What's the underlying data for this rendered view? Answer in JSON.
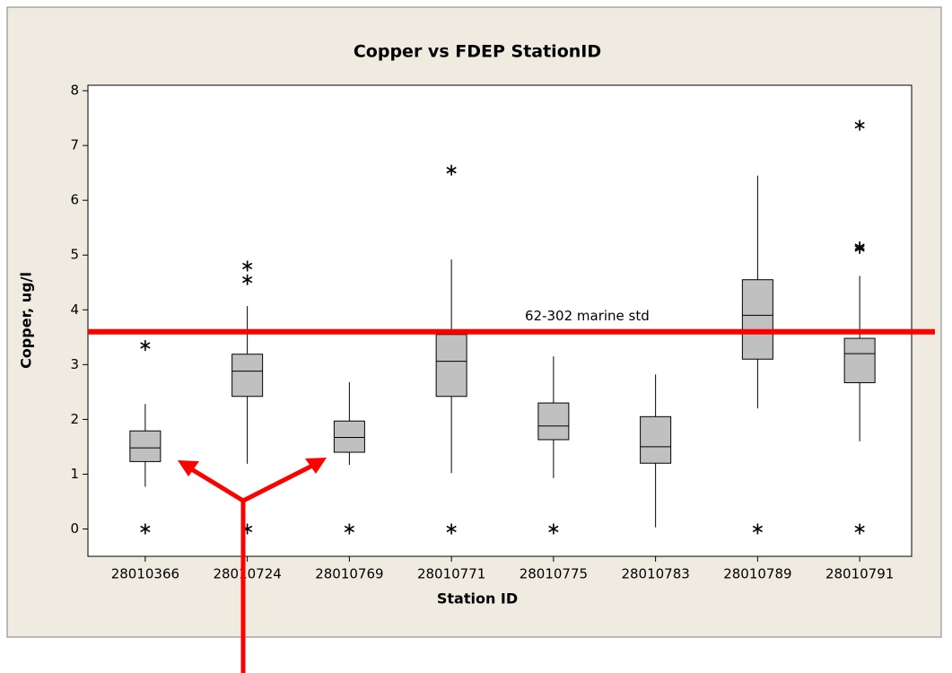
{
  "chart_data": {
    "type": "box",
    "title": "Copper vs FDEP StationID",
    "x_label": "Station ID",
    "y_label": "Copper, ug/l",
    "categories": [
      "28010366",
      "28010724",
      "28010769",
      "28010771",
      "28010775",
      "28010783",
      "28010789",
      "28010791"
    ],
    "color": "#c0c0c0",
    "boxes": [
      {
        "whisker_low": 0.77,
        "q1": 1.23,
        "median": 1.48,
        "q3": 1.79,
        "whisker_high": 2.28,
        "outliers": [
          3.35,
          0
        ]
      },
      {
        "whisker_low": 1.19,
        "q1": 2.42,
        "median": 2.88,
        "q3": 3.19,
        "whisker_high": 4.07,
        "outliers": [
          4.8,
          4.55,
          0
        ]
      },
      {
        "whisker_low": 1.17,
        "q1": 1.4,
        "median": 1.67,
        "q3": 1.97,
        "whisker_high": 2.68,
        "outliers": [
          0
        ]
      },
      {
        "whisker_low": 1.02,
        "q1": 2.42,
        "median": 3.06,
        "q3": 3.55,
        "whisker_high": 4.92,
        "outliers": [
          6.55,
          0
        ]
      },
      {
        "whisker_low": 0.93,
        "q1": 1.63,
        "median": 1.88,
        "q3": 2.3,
        "whisker_high": 3.15,
        "outliers": [
          0
        ]
      },
      {
        "whisker_low": 0.03,
        "q1": 1.2,
        "median": 1.5,
        "q3": 2.05,
        "whisker_high": 2.82,
        "outliers": []
      },
      {
        "whisker_low": 2.2,
        "q1": 3.1,
        "median": 3.9,
        "q3": 4.55,
        "whisker_high": 6.45,
        "outliers": [
          0
        ]
      },
      {
        "whisker_low": 1.6,
        "q1": 2.67,
        "median": 3.2,
        "q3": 3.48,
        "whisker_high": 4.62,
        "outliers": [
          7.37,
          5.15,
          5.12,
          0
        ]
      }
    ],
    "reference_line": {
      "value": 3.6,
      "label": "62-302 marine std",
      "color": "#ff0000"
    },
    "ylim": [
      -0.5,
      8.1
    ],
    "yticks": [
      0,
      1,
      2,
      3,
      4,
      5,
      6,
      7,
      8
    ]
  }
}
